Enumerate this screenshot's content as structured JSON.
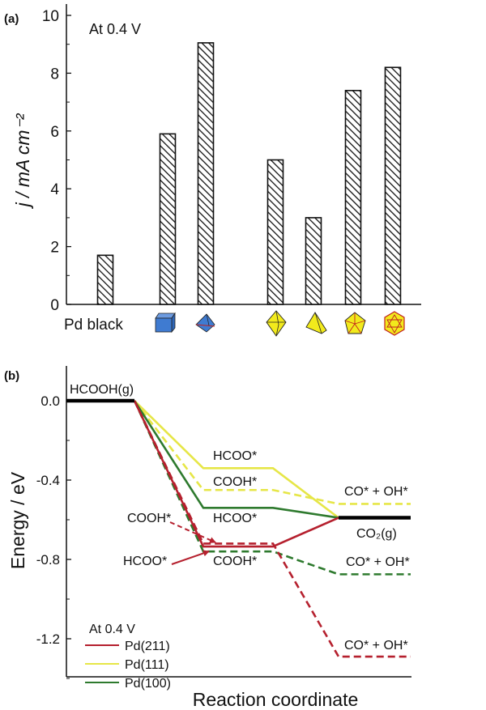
{
  "chart_data": [
    {
      "type": "bar",
      "panel_label": "(a)",
      "annotation": "At 0.4 V",
      "ylabel": "j / mA cm⁻²",
      "ylim": [
        0,
        10
      ],
      "yticks": [
        "0",
        "2",
        "4",
        "6",
        "8",
        "10"
      ],
      "categories": [
        "Pd black",
        "cube",
        "octahedron-blue",
        "octahedron-yellow",
        "tetrahedron",
        "decahedron",
        "icosahedron"
      ],
      "category_labels": [
        "Pd black",
        "",
        "",
        "",
        "",
        "",
        ""
      ],
      "category_icons": [
        "",
        "cube-icon",
        "blue-octahedron-icon",
        "yellow-octahedron-icon",
        "tetrahedron-icon",
        "decahedron-icon",
        "icosahedron-icon"
      ],
      "values": [
        1.7,
        5.9,
        9.05,
        5.0,
        3.0,
        7.4,
        8.2
      ],
      "bar_fill": "diagonal-hatch",
      "colors": {
        "blue": "#3f7bd1",
        "yellow": "#f2ea1c",
        "red_edge": "#c0201e"
      }
    },
    {
      "type": "line",
      "panel_label": "(b)",
      "ylabel": "Energy / eV",
      "xlabel": "Reaction coordinate",
      "ylim": [
        -1.4,
        0.2
      ],
      "yticks": [
        "0.0",
        "-0.4",
        "-0.8",
        "-1.2"
      ],
      "legend_title": "At 0.4 V",
      "legend_position": "bottom-left",
      "states": [
        "initial",
        "intermediate",
        "final"
      ],
      "common_levels": {
        "initial": 0.0,
        "final": -0.59,
        "initial_label": "HCOOH(g)",
        "final_label": "CO₂(g)"
      },
      "series": [
        {
          "name": "Pd(211)",
          "color": "#b5202e",
          "paths": [
            {
              "style": "solid",
              "via": "HCOO*",
              "values": [
                0.0,
                -0.735,
                -0.59
              ]
            },
            {
              "style": "dashed",
              "via": "COOH*",
              "values": [
                0.0,
                -0.72,
                -1.29
              ]
            }
          ]
        },
        {
          "name": "Pd(111)",
          "color": "#e6e647",
          "paths": [
            {
              "style": "solid",
              "via": "HCOO*",
              "values": [
                0.0,
                -0.34,
                -0.59
              ]
            },
            {
              "style": "dashed",
              "via": "COOH*",
              "values": [
                0.0,
                -0.45,
                -0.52
              ]
            }
          ]
        },
        {
          "name": "Pd(100)",
          "color": "#2e7a2e",
          "paths": [
            {
              "style": "solid",
              "via": "HCOO*",
              "values": [
                0.0,
                -0.54,
                -0.59
              ]
            },
            {
              "style": "dashed",
              "via": "COOH*",
              "values": [
                0.0,
                -0.76,
                -0.875
              ]
            }
          ]
        }
      ],
      "annotations": [
        "HCOO*",
        "COOH*",
        "CO* + OH*",
        "HCOO*",
        "COOH*",
        "HCOO*",
        "COOH*",
        "CO* + OH*",
        "CO* + OH*"
      ]
    }
  ]
}
